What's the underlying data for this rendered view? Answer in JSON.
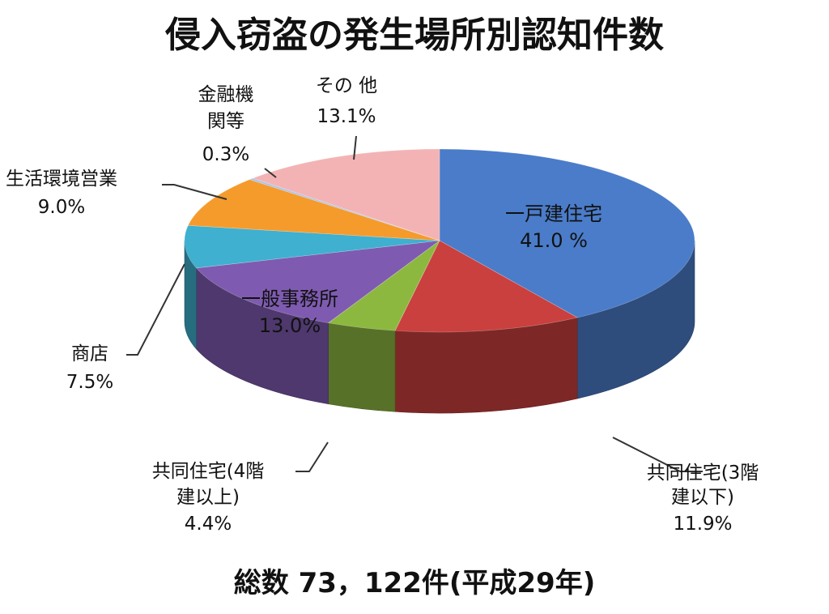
{
  "chart_data": {
    "type": "pie",
    "title": "侵入窃盗の発生場所別認知件数",
    "footer": "総数 73，122件(平成29年)",
    "slices": [
      {
        "name": "一戸建住宅",
        "label_lines": [
          "一戸建住宅"
        ],
        "pct_label": "41.0 %",
        "value": 41.0,
        "color": "#4a7cc9"
      },
      {
        "name": "共同住宅(3階建以下)",
        "label_lines": [
          "共同住宅(3階",
          "建以下)"
        ],
        "pct_label": "11.9%",
        "value": 11.9,
        "color": "#c9403e"
      },
      {
        "name": "共同住宅(4階建以上)",
        "label_lines": [
          "共同住宅(4階",
          "建以上)"
        ],
        "pct_label": "4.4%",
        "value": 4.4,
        "color": "#8db840"
      },
      {
        "name": "一般事務所",
        "label_lines": [
          "一般事務所"
        ],
        "pct_label": "13.0%",
        "value": 13.0,
        "color": "#7e5bb0"
      },
      {
        "name": "商店",
        "label_lines": [
          "商店"
        ],
        "pct_label": "7.5%",
        "value": 7.5,
        "color": "#3fb0cf"
      },
      {
        "name": "生活環境営業",
        "label_lines": [
          "生活環境営業"
        ],
        "pct_label": "9.0%",
        "value": 9.0,
        "color": "#f59b2c"
      },
      {
        "name": "金融機関等",
        "label_lines": [
          "金融機",
          "関等"
        ],
        "pct_label": "0.3%",
        "value": 0.3,
        "color": "#a9c4ea"
      },
      {
        "name": "その他",
        "label_lines": [
          "その 他"
        ],
        "pct_label": "13.1%",
        "value": 13.1,
        "color": "#f3b3b4"
      }
    ],
    "legend": "none",
    "style": "3d-pie"
  }
}
